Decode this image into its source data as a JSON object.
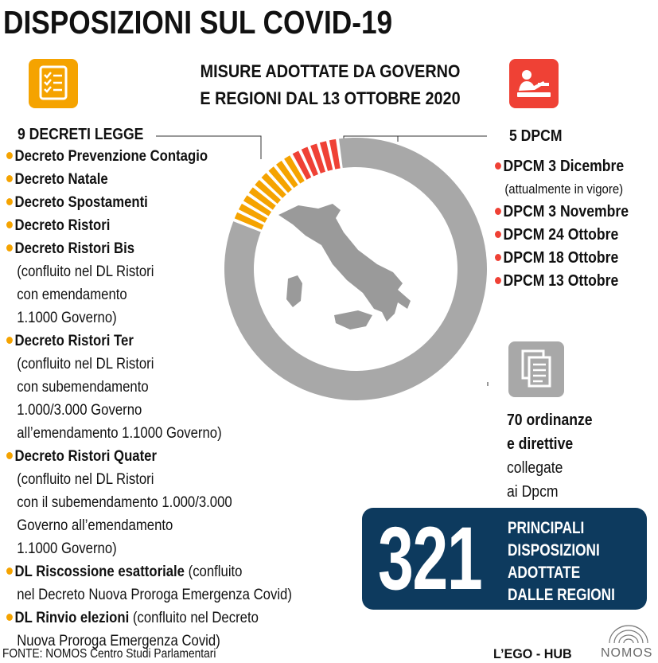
{
  "title": "DISPOSIZIONI SUL COVID-19",
  "subtitle": [
    "MISURE ADOTTATE DA GOVERNO",
    "E REGIONI DAL 13 OTTOBRE 2020"
  ],
  "colors": {
    "decreti": "#f5a300",
    "dpcm": "#ef4135",
    "ordinanze": "#a8a8a8",
    "box": "#0d3a5e"
  },
  "decreti": {
    "header": "9  DECRETI LEGGE",
    "items": [
      {
        "name": "Decreto Prevenzione Contagio",
        "note": ""
      },
      {
        "name": "Decreto Natale",
        "note": ""
      },
      {
        "name": "Decreto Spostamenti",
        "note": ""
      },
      {
        "name": "Decreto Ristori",
        "note": ""
      },
      {
        "name": "Decreto Ristori Bis",
        "note_lines": [
          "(confluito nel DL Ristori",
          "con emendamento",
          "1.1000 Governo)"
        ]
      },
      {
        "name": "Decreto Ristori Ter",
        "note_lines": [
          "(confluito nel DL Ristori",
          "con subemendamento",
          "1.000/3.000 Governo",
          "all’emendamento 1.1000 Governo)"
        ]
      },
      {
        "name": "Decreto Ristori Quater",
        "note_lines": [
          "(confluito nel DL Ristori",
          "con il subemendamento 1.000/3.000",
          "Governo all’emendamento",
          "1.1000 Governo)"
        ]
      },
      {
        "name": "DL Riscossione esattoriale",
        "inline": " (confluito",
        "note_lines": [
          "nel Decreto Nuova Proroga Emergenza Covid)"
        ]
      },
      {
        "name": "DL Rinvio elezioni",
        "inline": " (confluito nel Decreto",
        "note_lines": [
          "Nuova Proroga Emergenza Covid)"
        ]
      }
    ]
  },
  "dpcm": {
    "header": "5 DPCM",
    "items": [
      {
        "name": "DPCM 3 Dicembre",
        "note": "(attualmente in vigore)"
      },
      {
        "name": "DPCM 3 Novembre",
        "note": ""
      },
      {
        "name": "DPCM 24 Ottobre",
        "note": ""
      },
      {
        "name": "DPCM 18 Ottobre",
        "note": ""
      },
      {
        "name": "DPCM 13 Ottobre",
        "note": ""
      }
    ]
  },
  "ordinanze": {
    "line1": "70 ordinanze",
    "line2": "e direttive",
    "line3": "collegate",
    "line4": "ai Dpcm"
  },
  "regioni": {
    "number": "321",
    "lines": [
      "PRINCIPALI",
      "DISPOSIZIONI",
      "ADOTTATE",
      "DALLE REGIONI"
    ]
  },
  "footer": "FONTE: NOMOS Centro Studi Parlamentari",
  "brand": "L’EGO - HUB",
  "brand2": "NOMOS",
  "chart_data": {
    "type": "pie",
    "style": "donut",
    "categories": [
      "Decreti legge",
      "DPCM",
      "Ordinanze e direttive"
    ],
    "values": [
      9,
      5,
      70
    ],
    "colors": [
      "#f5a300",
      "#ef4135",
      "#a8a8a8"
    ]
  }
}
